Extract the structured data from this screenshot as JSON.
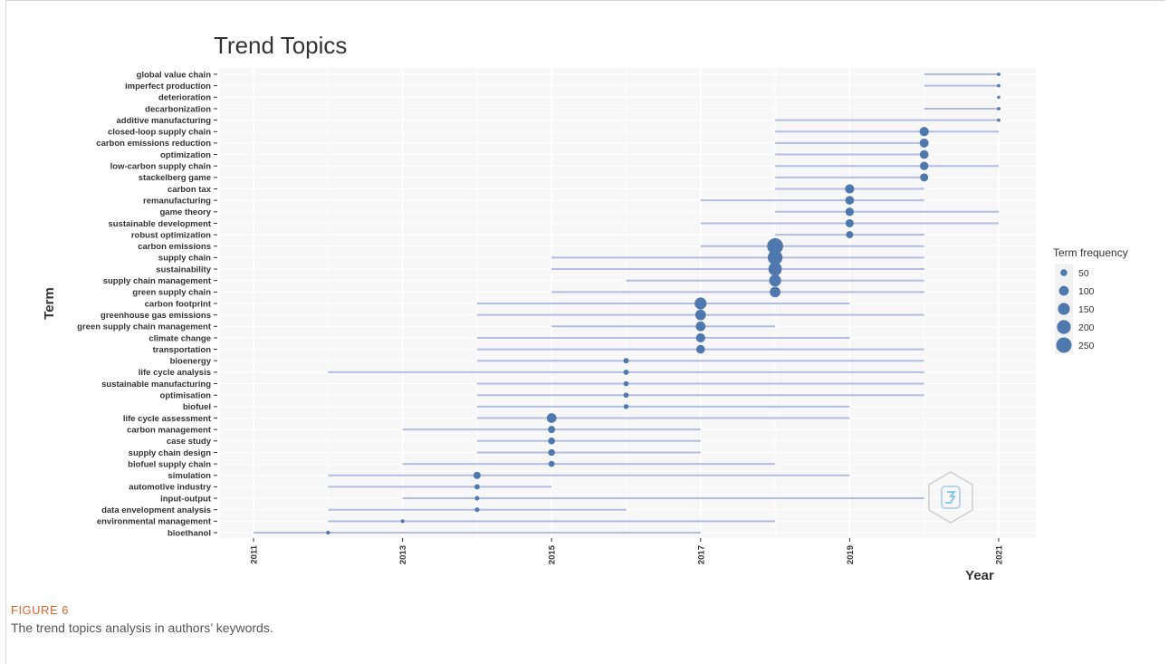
{
  "chart_data": {
    "type": "scatter",
    "title": "Trend Topics",
    "xlabel": "Year",
    "ylabel": "Term",
    "x_ticks": [
      "2011",
      "2013",
      "2015",
      "2017",
      "2019",
      "2021"
    ],
    "xlim": [
      2011,
      2021.5
    ],
    "legend": {
      "title": "Term frequency",
      "position": "right",
      "entries": [
        "50",
        "100",
        "150",
        "200",
        "250"
      ]
    },
    "grid": true,
    "colors": {
      "point": "#4f79ad",
      "range_line": "#b4bde0",
      "panel": "#f7f7f7",
      "grid": "#ffffff"
    },
    "terms": [
      {
        "term": "global value chain",
        "start": 2020,
        "end": 2021,
        "year": 2021,
        "freq": 12
      },
      {
        "term": "imperfect production",
        "start": 2020,
        "end": 2021,
        "year": 2021,
        "freq": 12
      },
      {
        "term": "deterioration",
        "start": 2021,
        "end": 2021,
        "year": 2021,
        "freq": 10
      },
      {
        "term": "decarbonization",
        "start": 2020,
        "end": 2021,
        "year": 2021,
        "freq": 12
      },
      {
        "term": "additive manufacturing",
        "start": 2018,
        "end": 2021,
        "year": 2021,
        "freq": 12
      },
      {
        "term": "closed-loop supply chain",
        "start": 2018,
        "end": 2021,
        "year": 2020,
        "freq": 90
      },
      {
        "term": "carbon emissions reduction",
        "start": 2018,
        "end": 2020,
        "year": 2020,
        "freq": 85
      },
      {
        "term": "optimization",
        "start": 2018,
        "end": 2020,
        "year": 2020,
        "freq": 80
      },
      {
        "term": "low-carbon supply chain",
        "start": 2018,
        "end": 2021,
        "year": 2020,
        "freq": 75
      },
      {
        "term": "stackelberg game",
        "start": 2018,
        "end": 2020,
        "year": 2020,
        "freq": 70
      },
      {
        "term": "carbon tax",
        "start": 2018,
        "end": 2020,
        "year": 2019,
        "freq": 90
      },
      {
        "term": "remanufacturing",
        "start": 2017,
        "end": 2020,
        "year": 2019,
        "freq": 80
      },
      {
        "term": "game theory",
        "start": 2018,
        "end": 2021,
        "year": 2019,
        "freq": 75
      },
      {
        "term": "sustainable development",
        "start": 2017,
        "end": 2021,
        "year": 2019,
        "freq": 70
      },
      {
        "term": "robust optimization",
        "start": 2018,
        "end": 2020,
        "year": 2019,
        "freq": 55
      },
      {
        "term": "carbon emissions",
        "start": 2017,
        "end": 2020,
        "year": 2018,
        "freq": 270
      },
      {
        "term": "supply chain",
        "start": 2015,
        "end": 2020,
        "year": 2018,
        "freq": 230
      },
      {
        "term": "sustainability",
        "start": 2015,
        "end": 2020,
        "year": 2018,
        "freq": 190
      },
      {
        "term": "supply chain management",
        "start": 2016,
        "end": 2020,
        "year": 2018,
        "freq": 150
      },
      {
        "term": "green supply chain",
        "start": 2015,
        "end": 2020,
        "year": 2018,
        "freq": 120
      },
      {
        "term": "carbon footprint",
        "start": 2014,
        "end": 2019,
        "year": 2017,
        "freq": 150
      },
      {
        "term": "greenhouse gas emissions",
        "start": 2014,
        "end": 2020,
        "year": 2017,
        "freq": 120
      },
      {
        "term": "green supply chain management",
        "start": 2015,
        "end": 2018,
        "year": 2017,
        "freq": 100
      },
      {
        "term": "climate change",
        "start": 2014,
        "end": 2019,
        "year": 2017,
        "freq": 90
      },
      {
        "term": "transportation",
        "start": 2014,
        "end": 2020,
        "year": 2017,
        "freq": 80
      },
      {
        "term": "bioenergy",
        "start": 2014,
        "end": 2020,
        "year": 2016,
        "freq": 30
      },
      {
        "term": "life cycle analysis",
        "start": 2012,
        "end": 2020,
        "year": 2016,
        "freq": 30
      },
      {
        "term": "sustainable manufacturing",
        "start": 2014,
        "end": 2020,
        "year": 2016,
        "freq": 28
      },
      {
        "term": "optimisation",
        "start": 2014,
        "end": 2020,
        "year": 2016,
        "freq": 28
      },
      {
        "term": "biofuel",
        "start": 2014,
        "end": 2019,
        "year": 2016,
        "freq": 26
      },
      {
        "term": "life cycle assessment",
        "start": 2014,
        "end": 2019,
        "year": 2015,
        "freq": 100
      },
      {
        "term": "carbon management",
        "start": 2013,
        "end": 2017,
        "year": 2015,
        "freq": 55
      },
      {
        "term": "case study",
        "start": 2014,
        "end": 2017,
        "year": 2015,
        "freq": 50
      },
      {
        "term": "supply chain design",
        "start": 2014,
        "end": 2017,
        "year": 2015,
        "freq": 48
      },
      {
        "term": "biofuel supply chain",
        "start": 2013,
        "end": 2018,
        "year": 2015,
        "freq": 40
      },
      {
        "term": "simulation",
        "start": 2012,
        "end": 2019,
        "year": 2014,
        "freq": 55
      },
      {
        "term": "automotive industry",
        "start": 2012,
        "end": 2015,
        "year": 2014,
        "freq": 30
      },
      {
        "term": "input-output",
        "start": 2013,
        "end": 2020,
        "year": 2014,
        "freq": 22
      },
      {
        "term": "data envelopment analysis",
        "start": 2012,
        "end": 2016,
        "year": 2014,
        "freq": 22
      },
      {
        "term": "environmental management",
        "start": 2012,
        "end": 2018,
        "year": 2013,
        "freq": 15
      },
      {
        "term": "bioethanol",
        "start": 2011,
        "end": 2017,
        "year": 2012,
        "freq": 15
      }
    ]
  },
  "caption": {
    "label": "FIGURE 6",
    "text": "The trend topics analysis in authors’ keywords."
  }
}
